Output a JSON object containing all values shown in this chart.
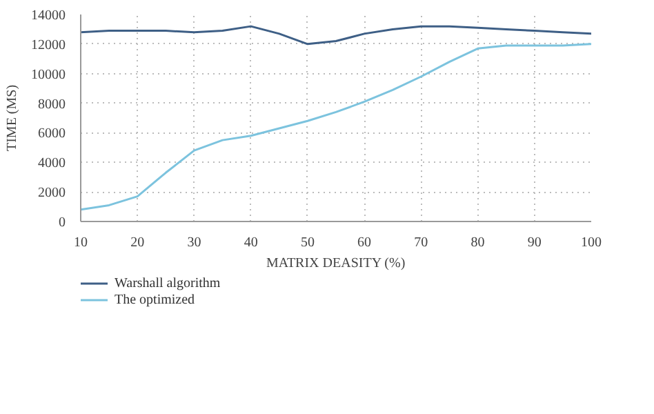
{
  "chart_data": {
    "type": "line",
    "xlabel": "MATRIX DEASITY (%)",
    "ylabel": "TIME (MS)",
    "x": [
      10,
      15,
      20,
      25,
      30,
      35,
      40,
      45,
      50,
      55,
      60,
      65,
      70,
      75,
      80,
      85,
      90,
      95,
      100
    ],
    "series": [
      {
        "name": "Warshall algorithm",
        "color": "#3e5f86",
        "values": [
          12800,
          12900,
          12900,
          12900,
          12800,
          12900,
          13200,
          12700,
          12000,
          12200,
          12700,
          13000,
          13200,
          13200,
          13100,
          13000,
          12900,
          12800,
          12700
        ]
      },
      {
        "name": "The optimized",
        "color": "#7cc3de",
        "values": [
          800,
          1100,
          1700,
          3300,
          4800,
          5500,
          5800,
          6300,
          6800,
          7400,
          8100,
          8900,
          9800,
          10800,
          11700,
          11900,
          11900,
          11900,
          12000
        ]
      }
    ],
    "xlim": [
      10,
      100
    ],
    "xticks": [
      10,
      20,
      30,
      40,
      50,
      60,
      70,
      80,
      90,
      100
    ],
    "ylim": [
      0,
      14000
    ],
    "yticks": [
      0,
      2000,
      4000,
      6000,
      8000,
      10000,
      12000,
      14000
    ],
    "grid": true,
    "legend": "bottom left",
    "marker": "none",
    "line_style": "solid"
  }
}
